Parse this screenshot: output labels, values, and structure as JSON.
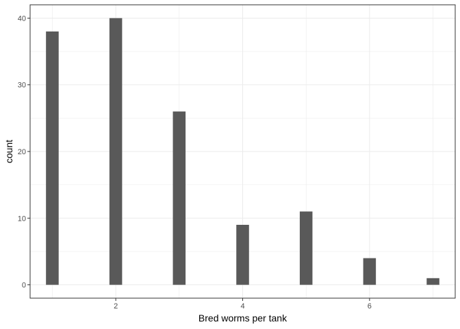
{
  "chart_data": {
    "type": "bar",
    "title": "",
    "xlabel": "Bred worms per tank",
    "ylabel": "count",
    "x": [
      1,
      2,
      3,
      4,
      5,
      6,
      7
    ],
    "values": [
      38,
      40,
      26,
      9,
      11,
      4,
      1
    ],
    "xlim": [
      0.65,
      7.35
    ],
    "ylim": [
      -2,
      42
    ],
    "x_ticks": [
      2,
      4,
      6
    ],
    "y_ticks": [
      0,
      10,
      20,
      30,
      40
    ],
    "bar_color": "#595959",
    "grid": true,
    "grid_color": "#ebebeb",
    "panel_border_color": "#333333",
    "theme": "bw"
  }
}
